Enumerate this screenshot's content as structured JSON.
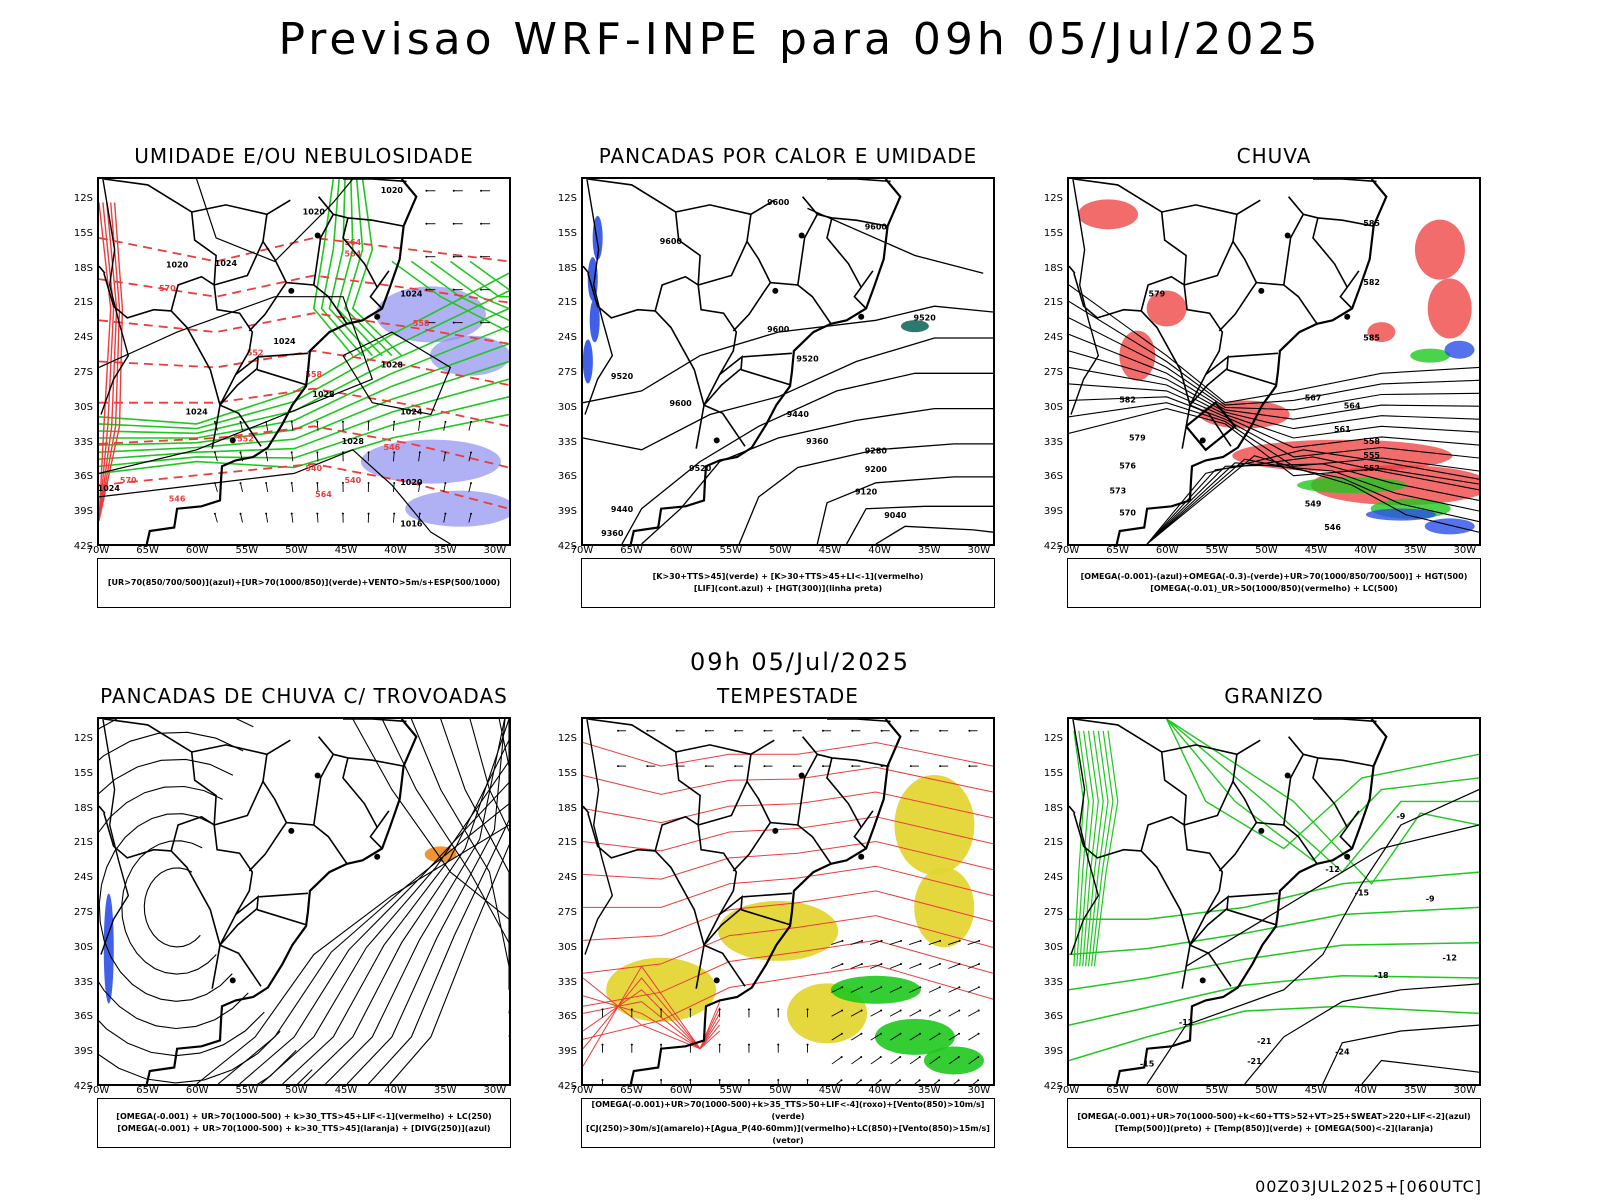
{
  "title": "Previsao WRF-INPE  para 09h 05/Jul/2025",
  "subtitle": "09h 05/Jul/2025",
  "run_info": "00Z03JUL2025+[060UTC]",
  "lat_labels": [
    "12S",
    "15S",
    "18S",
    "21S",
    "24S",
    "27S",
    "30S",
    "33S",
    "36S",
    "39S",
    "42S"
  ],
  "lon_labels": [
    "70W",
    "65W",
    "60W",
    "55W",
    "50W",
    "45W",
    "40W",
    "35W",
    "30W"
  ],
  "colors": {
    "blue": "#2b4fe8",
    "green": "#1ec81e",
    "red": "#ee3b3b",
    "lavender": "#8f8ff0",
    "yellow": "#e3d52f",
    "orange": "#f08a1e",
    "teal": "#156b5e",
    "black": "#000000"
  },
  "panels": [
    {
      "title": "UMIDADE E/OU NEBULOSIDADE",
      "legend": [
        "[UR>70(850/700/500)](azul)+[UR>70(1000/850)](verde)+VENTO>5m/s+ESP(500/1000)"
      ],
      "contour_labels": [
        "1020",
        "1020",
        "1020",
        "1024",
        "1024",
        "1024",
        "1028",
        "1028",
        "1024",
        "1024",
        "1028",
        "1020",
        "1016",
        "1024",
        "564",
        "564",
        "558",
        "570",
        "552",
        "558",
        "552",
        "546",
        "540",
        "540",
        "564",
        "570",
        "546"
      ]
    },
    {
      "title": "PANCADAS POR CALOR E UMIDADE",
      "legend": [
        "[K>30+TTS>45](verde) + [K>30+TTS>45+LI<-1](vermelho)",
        "[LIF](cont.azul) + [HGT(300)](linha preta)"
      ],
      "contour_labels": [
        "9600",
        "9600",
        "9600",
        "9600",
        "9520",
        "9520",
        "9600",
        "9520",
        "9440",
        "9360",
        "9280",
        "9200",
        "9120",
        "9040",
        "9520",
        "9440",
        "9360"
      ]
    },
    {
      "title": "CHUVA",
      "legend": [
        "[OMEGA(-0.001)-(azul)+OMEGA(-0.3)-(verde)+UR>70(1000/850/700/500)] + HGT(500)",
        "[OMEGA(-0.01)_UR>50(1000/850)(vermelho) + LC(500)"
      ],
      "contour_labels": [
        "585",
        "582",
        "579",
        "585",
        "582",
        "579",
        "576",
        "573",
        "570",
        "567",
        "564",
        "561",
        "558",
        "555",
        "552",
        "549",
        "546"
      ]
    },
    {
      "title": "PANCADAS DE CHUVA C/ TROVOADAS",
      "legend": [
        "[OMEGA(-0.001) + UR>70(1000-500) + k>30_TTS>45+LIF<-1](vermelho) + LC(250)",
        "[OMEGA(-0.001) + UR>70(1000-500) + k>30_TTS>45](laranja) + [DIVG(250)](azul)"
      ],
      "contour_labels": []
    },
    {
      "title": "TEMPESTADE",
      "legend": [
        "[OMEGA(-0.001)+UR>70(1000-500)+k>35_TTS>50+LIF<-4](roxo)+[Vento(850)>10m/s](verde)",
        "[CJ(250)>30m/s](amarelo)+[Agua_P(40-60mm)](vermelho)+LC(850)+[Vento(850)>15m/s](vetor)"
      ],
      "contour_labels": []
    },
    {
      "title": "GRANIZO",
      "legend": [
        "[OMEGA(-0.001)+UR>70(1000-500)+k<60+TTS>52+VT>25+SWEAT>220+LIF<-2](azul)",
        "[Temp(500)](preto) + [Temp(850)](verde) + [OMEGA(500)<-2](laranja)"
      ],
      "contour_labels": [
        "-9",
        "-12",
        "-15",
        "-18",
        "-21",
        "-24",
        "-12",
        "-15",
        "-21",
        "-9",
        "-12"
      ]
    }
  ]
}
